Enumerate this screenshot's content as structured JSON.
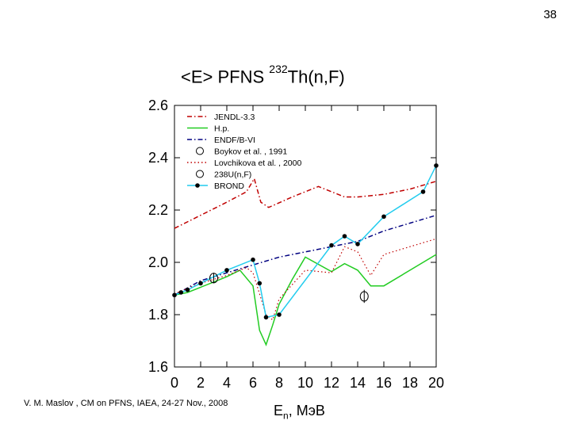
{
  "page_number": "38",
  "title_main": "<E> PFNS ",
  "title_sup": "232",
  "title_tail": "Th(n,F)",
  "footer": "V. M. Maslov ,   CM on PFNS, IAEA, 24-27 Nov., 2008",
  "xlabel_main": "E",
  "xlabel_sub": "n",
  "xlabel_tail": ", MэВ",
  "chart_data": {
    "type": "line",
    "xlim": [
      0,
      20
    ],
    "ylim": [
      1.6,
      2.6
    ],
    "x_ticks": [
      "0",
      "2",
      "4",
      "6",
      "8",
      "10",
      "12",
      "14",
      "16",
      "18",
      "20"
    ],
    "y_ticks": [
      "1.6",
      "1.8",
      "2.0",
      "2.2",
      "2.4",
      "2.6"
    ],
    "grid": false,
    "legend_position": "top-left",
    "legend": [
      "JENDL-3.3",
      "H.p.",
      "ENDF/B-VI",
      "Boykov et al. , 1991",
      "Lovchikova et al. , 2000",
      "238U(n,F)",
      "BROND"
    ],
    "series": [
      {
        "name": "JENDL-3.3",
        "color": "#c00000",
        "style": "dash-dot",
        "x": [
          0,
          2,
          4,
          5.5,
          6.1,
          6.6,
          7.2,
          9,
          11,
          13,
          14,
          16,
          18,
          20
        ],
        "y": [
          2.13,
          2.18,
          2.23,
          2.27,
          2.32,
          2.23,
          2.21,
          2.25,
          2.29,
          2.25,
          2.25,
          2.26,
          2.28,
          2.31
        ]
      },
      {
        "name": "H.p.",
        "color": "#22cc22",
        "style": "solid",
        "x": [
          0,
          1,
          2,
          3,
          4,
          5,
          6,
          6.5,
          7,
          7.5,
          8,
          9,
          10,
          12,
          13,
          14,
          15,
          16,
          18,
          20
        ],
        "y": [
          1.875,
          1.885,
          1.905,
          1.925,
          1.945,
          1.97,
          1.91,
          1.74,
          1.685,
          1.76,
          1.84,
          1.935,
          2.02,
          1.965,
          1.995,
          1.97,
          1.91,
          1.91,
          1.97,
          2.03
        ]
      },
      {
        "name": "ENDF/B-VI",
        "color": "#000080",
        "style": "dash-dot",
        "x": [
          0,
          2,
          4,
          6,
          8,
          10,
          12,
          14,
          16,
          18,
          20
        ],
        "y": [
          1.875,
          1.93,
          1.96,
          1.99,
          2.02,
          2.04,
          2.06,
          2.08,
          2.12,
          2.15,
          2.18
        ]
      },
      {
        "name": "Lovchikova et al. , 2000",
        "color": "#c00000",
        "style": "dotted",
        "x": [
          0,
          2,
          4,
          5.5,
          6,
          7,
          7.5,
          8,
          10,
          12,
          13,
          14,
          15,
          16,
          18,
          20
        ],
        "y": [
          1.88,
          1.92,
          1.95,
          1.98,
          1.96,
          1.8,
          1.78,
          1.86,
          1.97,
          1.96,
          2.06,
          2.04,
          1.95,
          2.03,
          2.06,
          2.09
        ]
      },
      {
        "name": "BROND",
        "color": "#22ccee",
        "style": "solid-markers",
        "x": [
          0,
          0.5,
          1,
          2,
          4,
          6,
          6.5,
          7,
          8,
          12,
          13,
          14,
          16,
          19,
          20
        ],
        "y": [
          1.875,
          1.885,
          1.895,
          1.92,
          1.97,
          2.01,
          1.92,
          1.79,
          1.8,
          2.065,
          2.1,
          2.07,
          2.175,
          2.27,
          2.37
        ]
      },
      {
        "name": "Boykov et al. , 1991",
        "color": "#000000",
        "style": "open-circle",
        "x": [
          3
        ],
        "y": [
          1.94
        ],
        "yerr": [
          0.02
        ]
      },
      {
        "name": "238U(n,F)",
        "color": "#000000",
        "style": "open-circle",
        "x": [
          14.5
        ],
        "y": [
          1.87
        ],
        "yerr": [
          0.025
        ]
      }
    ]
  }
}
